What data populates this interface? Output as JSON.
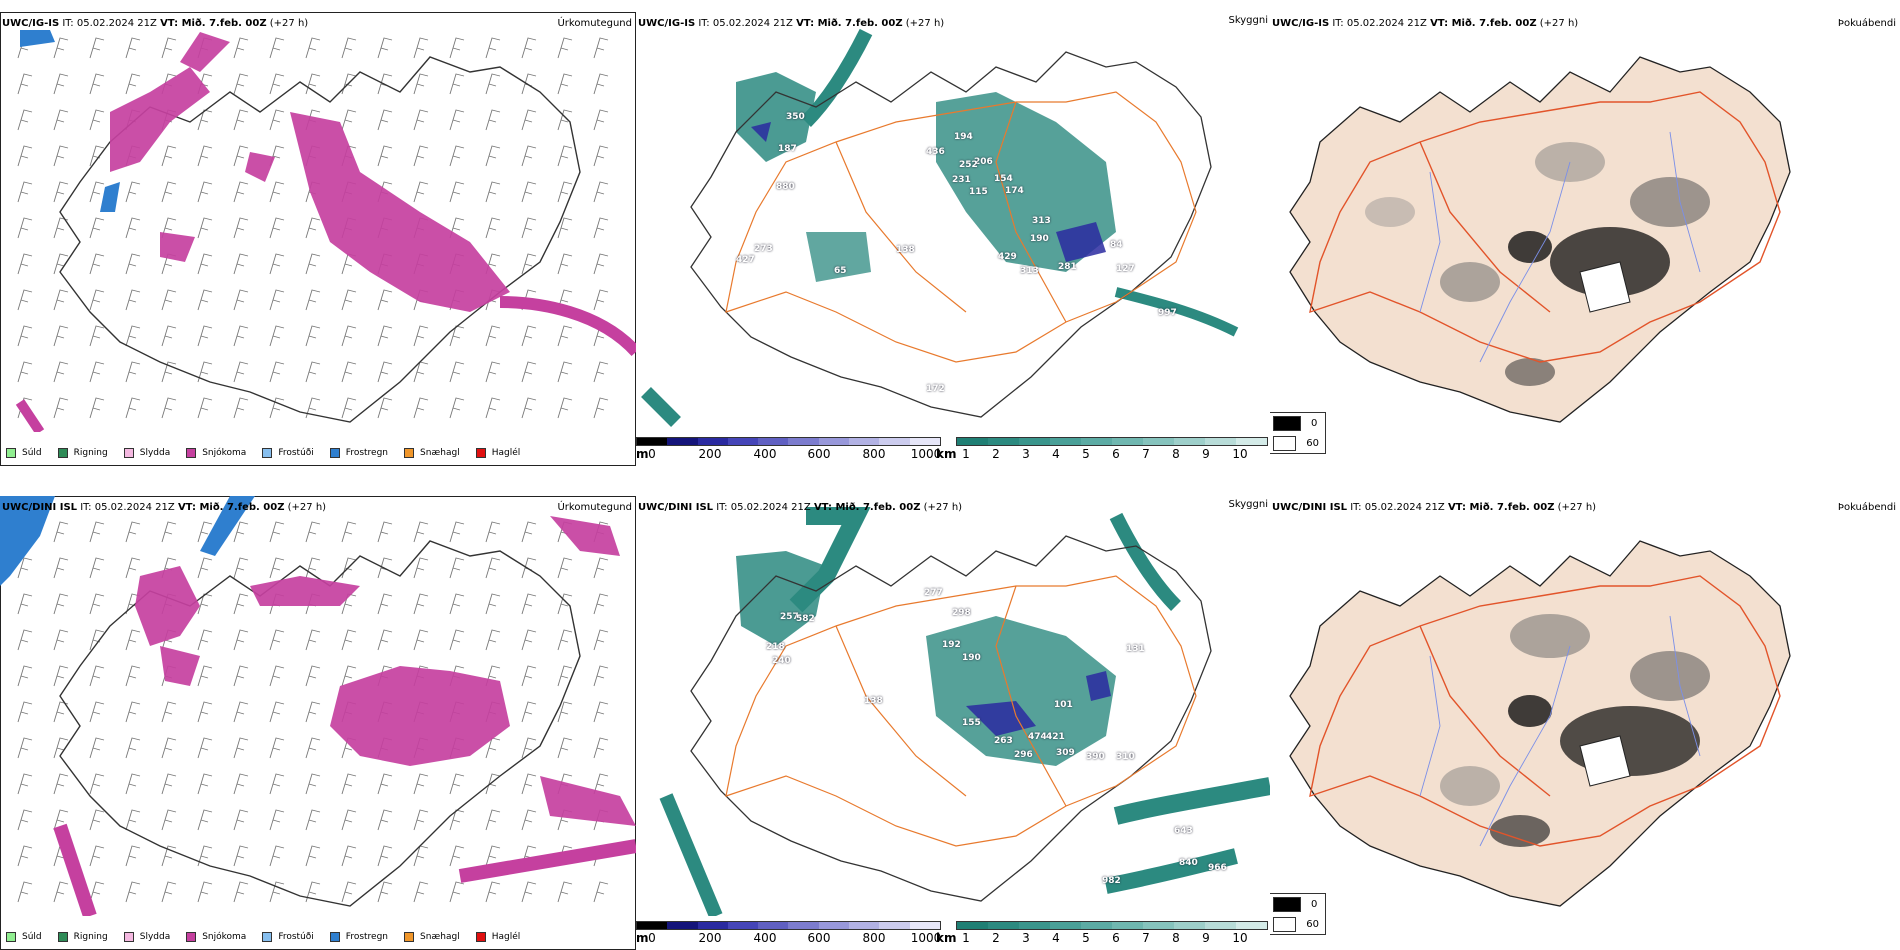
{
  "rows": [
    {
      "model": "UWC/IG-IS",
      "it_label": "IT:",
      "it_value": "05.02.2024 21Z",
      "vt_label": "VT:",
      "vt_value": "Mið. 7.feb. 00Z",
      "lead": "(+27 h)",
      "visibility_labels": [
        "187",
        "350",
        "880",
        "436",
        "194",
        "206",
        "252",
        "231",
        "115",
        "154",
        "174",
        "313",
        "429",
        "190",
        "313",
        "281",
        "84",
        "127",
        "997",
        "273",
        "427",
        "65",
        "138",
        "172"
      ]
    },
    {
      "model": "UWC/DINI ISL",
      "it_label": "IT:",
      "it_value": "05.02.2024 21Z",
      "vt_label": "VT:",
      "vt_value": "Mið. 7.feb. 00Z",
      "lead": "(+27 h)",
      "visibility_labels": [
        "257",
        "582",
        "218",
        "240",
        "277",
        "298",
        "192",
        "190",
        "263",
        "474",
        "421",
        "296",
        "309",
        "390",
        "310",
        "101",
        "131",
        "138",
        "155",
        "643",
        "840",
        "966",
        "982"
      ]
    }
  ],
  "products": {
    "precip_type": "Úrkomutegund",
    "visibility": "Skyggni",
    "fog": "Þokuábendi"
  },
  "precip_legend": [
    {
      "label": "Súld",
      "color": "#90ee90"
    },
    {
      "label": "Rigning",
      "color": "#2e8b57"
    },
    {
      "label": "Slydda",
      "color": "#f4b8e0"
    },
    {
      "label": "Snjókoma",
      "color": "#c5409f"
    },
    {
      "label": "Frostúði",
      "color": "#87bfef"
    },
    {
      "label": "Frostregn",
      "color": "#2f7fcf"
    },
    {
      "label": "Snæhagl",
      "color": "#f0962a"
    },
    {
      "label": "Haglél",
      "color": "#e01010"
    }
  ],
  "vis_m_scale": {
    "unit": "m",
    "ticks": [
      "0",
      "200",
      "400",
      "600",
      "800",
      "1000"
    ],
    "colors": [
      "#000000",
      "#14147a",
      "#2a2aa0",
      "#4545b8",
      "#6060c2",
      "#7c7cce",
      "#9898da",
      "#b2b2e4",
      "#ccccee",
      "#e6e6f8"
    ]
  },
  "vis_km_scale": {
    "unit": "km",
    "ticks": [
      "1",
      "2",
      "3",
      "4",
      "5",
      "6",
      "7",
      "8",
      "9",
      "10"
    ],
    "colors": [
      "#1f7f74",
      "#2c8a80",
      "#3a958c",
      "#4aa098",
      "#5cabA4",
      "#70b7b0",
      "#86c3bd",
      "#9ecfca",
      "#b8dcd8",
      "#d4ebe8"
    ]
  },
  "fog_scale": {
    "entries": [
      {
        "label": "0",
        "color": "#000000"
      },
      {
        "label": "60",
        "color": "#ffffff"
      }
    ]
  },
  "colors": {
    "snow": "#c5409f",
    "freezing": "#2f7fcf",
    "vis_km": "#2c8a80",
    "vis_m": "#2a2aa0",
    "roads": "#e87a2e",
    "land_fog": "#f3e0d0",
    "rivers": "#7b8fe8"
  }
}
